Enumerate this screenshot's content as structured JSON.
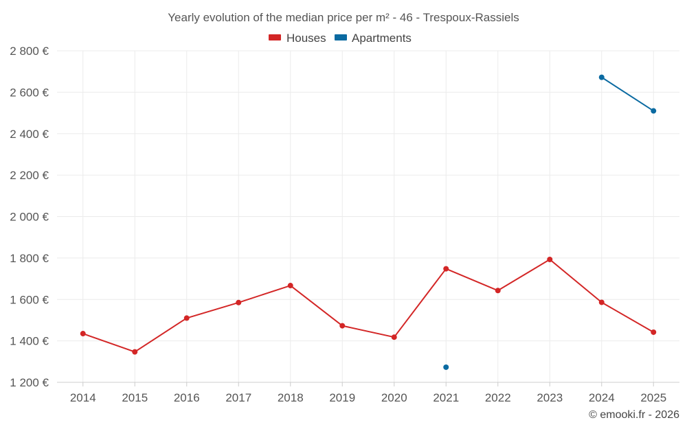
{
  "chart_data": {
    "type": "line",
    "title": "Yearly evolution of the median price per m² - 46 - Trespoux-Rassiels",
    "categories": [
      "2014",
      "2015",
      "2016",
      "2017",
      "2018",
      "2019",
      "2020",
      "2021",
      "2022",
      "2023",
      "2024",
      "2025"
    ],
    "series": [
      {
        "name": "Houses",
        "color": "#d32626",
        "values": [
          1435,
          1347,
          1510,
          1585,
          1667,
          1473,
          1418,
          1748,
          1643,
          1793,
          1586,
          1442
        ]
      },
      {
        "name": "Apartments",
        "color": "#0a6aa1",
        "values": [
          null,
          null,
          null,
          null,
          null,
          null,
          null,
          1273,
          null,
          null,
          2672,
          2510
        ]
      }
    ],
    "ylim": [
      1200,
      2800
    ],
    "yticks": [
      1200,
      1400,
      1600,
      1800,
      2000,
      2200,
      2400,
      2600,
      2800
    ],
    "ytick_labels": [
      "1 200 €",
      "1 400 €",
      "1 600 €",
      "1 800 €",
      "2 000 €",
      "2 200 €",
      "2 400 €",
      "2 600 €",
      "2 800 €"
    ],
    "xlabel": "",
    "ylabel": "",
    "grid": true,
    "legend_position": "top-center"
  },
  "credit": "© emooki.fr - 2026"
}
